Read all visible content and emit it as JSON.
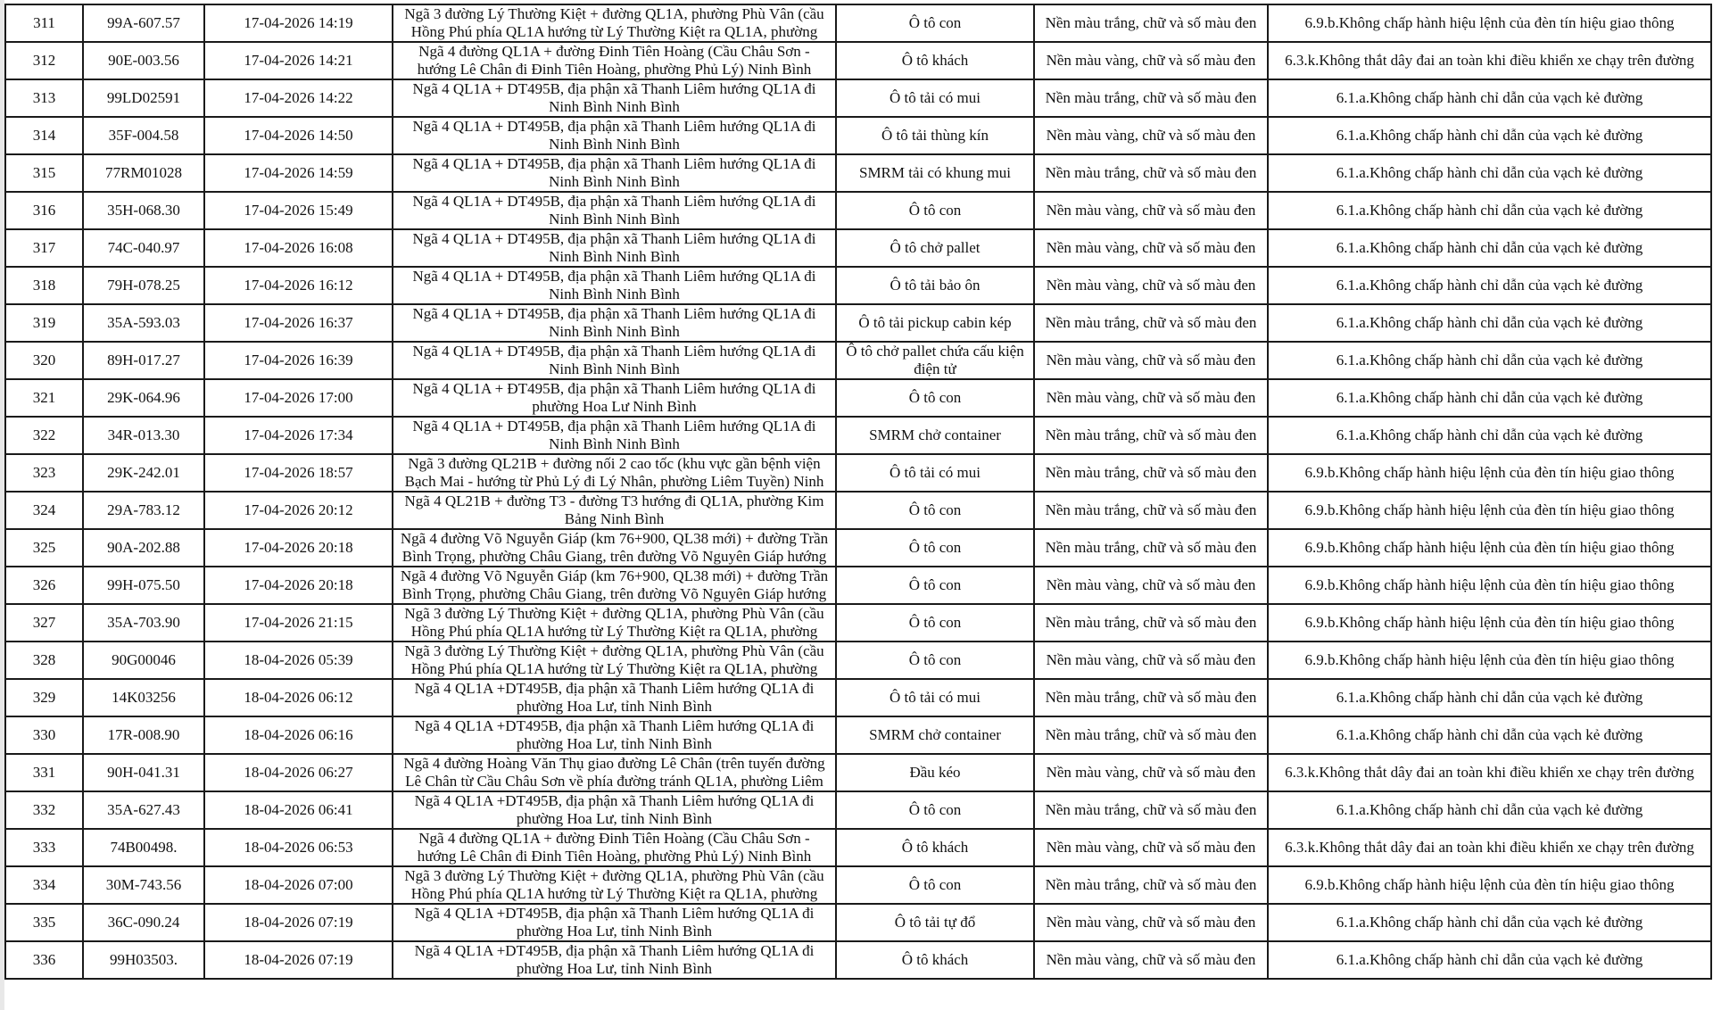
{
  "table": {
    "rows": [
      {
        "stt": "311",
        "plate": "99A-607.57",
        "time": "17-04-2026 14:19",
        "location": "Ngã 3 đường Lý Thường Kiệt + đường QL1A, phường Phù Vân (cầu\nHồng Phú phía QL1A hướng từ Lý Thường Kiệt ra QL1A, phường",
        "vehicle": "Ô tô con",
        "plate_color": "Nền màu trắng, chữ và số màu đen",
        "violation": "6.9.b.Không chấp hành hiệu lệnh của đèn tín hiệu giao thông"
      },
      {
        "stt": "312",
        "plate": "90E-003.56",
        "time": "17-04-2026 14:21",
        "location": "Ngã 4 đường QL1A + đường Đinh Tiên Hoàng (Cầu Châu Sơn -\nhướng Lê Chân đi Đinh Tiên Hoàng, phường Phủ Lý) Ninh Bình",
        "vehicle": "Ô tô khách",
        "plate_color": "Nền màu vàng, chữ và số màu đen",
        "violation": "6.3.k.Không thắt dây đai an toàn khi điều khiển xe chạy trên đường"
      },
      {
        "stt": "313",
        "plate": "99LD02591",
        "time": "17-04-2026 14:22",
        "location": "Ngã 4 QL1A + DT495B, địa phận xã Thanh Liêm hướng QL1A đi\nNinh Bình Ninh Bình",
        "vehicle": "Ô tô tải có mui",
        "plate_color": "Nền màu trắng, chữ và số màu đen",
        "violation": "6.1.a.Không chấp hành chỉ dẫn của vạch kẻ đường"
      },
      {
        "stt": "314",
        "plate": "35F-004.58",
        "time": "17-04-2026 14:50",
        "location": "Ngã 4 QL1A + DT495B, địa phận xã Thanh Liêm hướng QL1A đi\nNinh Bình Ninh Bình",
        "vehicle": "Ô tô tải thùng kín",
        "plate_color": "Nền màu vàng, chữ và số màu đen",
        "violation": "6.1.a.Không chấp hành chỉ dẫn của vạch kẻ đường"
      },
      {
        "stt": "315",
        "plate": "77RM01028",
        "time": "17-04-2026 14:59",
        "location": "Ngã 4 QL1A + DT495B, địa phận xã Thanh Liêm hướng QL1A đi\nNinh Bình Ninh Bình",
        "vehicle": "SMRM tải có khung mui",
        "plate_color": "Nền màu trắng, chữ và số màu đen",
        "violation": "6.1.a.Không chấp hành chỉ dẫn của vạch kẻ đường"
      },
      {
        "stt": "316",
        "plate": "35H-068.30",
        "time": "17-04-2026 15:49",
        "location": "Ngã 4 QL1A + DT495B, địa phận xã Thanh Liêm hướng QL1A đi\nNinh Bình Ninh Bình",
        "vehicle": "Ô tô con",
        "plate_color": "Nền màu vàng, chữ và số màu đen",
        "violation": "6.1.a.Không chấp hành chỉ dẫn của vạch kẻ đường"
      },
      {
        "stt": "317",
        "plate": "74C-040.97",
        "time": "17-04-2026 16:08",
        "location": "Ngã 4 QL1A + DT495B, địa phận xã Thanh Liêm hướng QL1A đi\nNinh Bình Ninh Bình",
        "vehicle": "Ô tô chở pallet",
        "plate_color": "Nền màu vàng, chữ và số màu đen",
        "violation": "6.1.a.Không chấp hành chỉ dẫn của vạch kẻ đường"
      },
      {
        "stt": "318",
        "plate": "79H-078.25",
        "time": "17-04-2026 16:12",
        "location": "Ngã 4 QL1A + DT495B, địa phận xã Thanh Liêm hướng QL1A đi\nNinh Bình Ninh Bình",
        "vehicle": "Ô tô tải bảo ôn",
        "plate_color": "Nền màu vàng, chữ và số màu đen",
        "violation": "6.1.a.Không chấp hành chỉ dẫn của vạch kẻ đường"
      },
      {
        "stt": "319",
        "plate": "35A-593.03",
        "time": "17-04-2026 16:37",
        "location": "Ngã 4 QL1A + DT495B, địa phận xã Thanh Liêm hướng QL1A đi\nNinh Bình Ninh Bình",
        "vehicle": "Ô tô tải pickup cabin kép",
        "plate_color": "Nền màu trắng, chữ và số màu đen",
        "violation": "6.1.a.Không chấp hành chỉ dẫn của vạch kẻ đường"
      },
      {
        "stt": "320",
        "plate": "89H-017.27",
        "time": "17-04-2026 16:39",
        "location": "Ngã 4 QL1A + DT495B, địa phận xã Thanh Liêm hướng QL1A đi\nNinh Bình Ninh Bình",
        "vehicle": "Ô tô chở pallet chứa cấu kiện\nđiện tử",
        "plate_color": "Nền màu vàng, chữ và số màu đen",
        "violation": "6.1.a.Không chấp hành chỉ dẫn của vạch kẻ đường"
      },
      {
        "stt": "321",
        "plate": "29K-064.96",
        "time": "17-04-2026 17:00",
        "location": "Ngã 4 QL1A + ĐT495B, địa phận xã Thanh Liêm hướng QL1A đi\nphường Hoa Lư Ninh Bình",
        "vehicle": "Ô tô con",
        "plate_color": "Nền màu vàng, chữ và số màu đen",
        "violation": "6.1.a.Không chấp hành chỉ dẫn của vạch kẻ đường"
      },
      {
        "stt": "322",
        "plate": "34R-013.30",
        "time": "17-04-2026 17:34",
        "location": "Ngã 4 QL1A + DT495B, địa phận xã Thanh Liêm hướng QL1A đi\nNinh Bình Ninh Bình",
        "vehicle": "SMRM chở container",
        "plate_color": "Nền màu trắng, chữ và số màu đen",
        "violation": "6.1.a.Không chấp hành chỉ dẫn của vạch kẻ đường"
      },
      {
        "stt": "323",
        "plate": "29K-242.01",
        "time": "17-04-2026 18:57",
        "location": "Ngã 3 đường QL21B + đường nối 2 cao tốc (khu vực gần bệnh viện\nBạch Mai - hướng từ Phủ Lý đi Lý Nhân, phường Liêm Tuyền) Ninh",
        "vehicle": "Ô tô tải có mui",
        "plate_color": "Nền màu trắng, chữ và số màu đen",
        "violation": "6.9.b.Không chấp hành hiệu lệnh của đèn tín hiệu giao thông"
      },
      {
        "stt": "324",
        "plate": "29A-783.12",
        "time": "17-04-2026 20:12",
        "location": "Ngã 4 QL21B + đường T3 - đường T3 hướng đi QL1A, phường Kim\nBảng Ninh Bình",
        "vehicle": "Ô tô con",
        "plate_color": "Nền màu trắng, chữ và số màu đen",
        "violation": "6.9.b.Không chấp hành hiệu lệnh của đèn tín hiệu giao thông"
      },
      {
        "stt": "325",
        "plate": "90A-202.88",
        "time": "17-04-2026 20:18",
        "location": "Ngã 4 đường Võ Nguyễn Giáp (km 76+900, QL38 mới) + đường Trần\nBình Trọng, phường Châu Giang, trên đường Võ Nguyên Giáp hướng",
        "vehicle": "Ô tô con",
        "plate_color": "Nền màu trắng, chữ và số màu đen",
        "violation": "6.9.b.Không chấp hành hiệu lệnh của đèn tín hiệu giao thông"
      },
      {
        "stt": "326",
        "plate": "99H-075.50",
        "time": "17-04-2026 20:18",
        "location": "Ngã 4 đường Võ Nguyễn Giáp (km 76+900, QL38 mới) + đường Trần\nBình Trọng, phường Châu Giang, trên đường Võ Nguyên Giáp hướng",
        "vehicle": "Ô tô con",
        "plate_color": "Nền màu vàng, chữ và số màu đen",
        "violation": "6.9.b.Không chấp hành hiệu lệnh của đèn tín hiệu giao thông"
      },
      {
        "stt": "327",
        "plate": "35A-703.90",
        "time": "17-04-2026 21:15",
        "location": "Ngã 3 đường Lý Thường Kiệt + đường QL1A, phường Phù Vân (cầu\nHồng Phú phía QL1A hướng từ Lý Thường Kiệt ra QL1A, phường",
        "vehicle": "Ô tô con",
        "plate_color": "Nền màu trắng, chữ và số màu đen",
        "violation": "6.9.b.Không chấp hành hiệu lệnh của đèn tín hiệu giao thông"
      },
      {
        "stt": "328",
        "plate": "90G00046",
        "time": "18-04-2026 05:39",
        "location": "Ngã 3 đường Lý Thường Kiệt + đường QL1A, phường Phù Vân (cầu\nHồng Phú phía QL1A hướng từ Lý Thường Kiệt ra QL1A, phường",
        "vehicle": "Ô tô con",
        "plate_color": "Nền màu vàng, chữ và số màu đen",
        "violation": "6.9.b.Không chấp hành hiệu lệnh của đèn tín hiệu giao thông"
      },
      {
        "stt": "329",
        "plate": "14K03256",
        "time": "18-04-2026 06:12",
        "location": "Ngã 4 QL1A +DT495B, địa phận xã Thanh Liêm hướng QL1A đi\nphường Hoa Lư, tỉnh Ninh Bình",
        "vehicle": "Ô tô tải có mui",
        "plate_color": "Nền màu trắng, chữ và số màu đen",
        "violation": "6.1.a.Không chấp hành chỉ dẫn của vạch kẻ đường"
      },
      {
        "stt": "330",
        "plate": "17R-008.90",
        "time": "18-04-2026 06:16",
        "location": "Ngã 4 QL1A +DT495B, địa phận xã Thanh Liêm hướng QL1A đi\nphường Hoa Lư, tỉnh Ninh Bình",
        "vehicle": "SMRM chở container",
        "plate_color": "Nền màu trắng, chữ và số màu đen",
        "violation": "6.1.a.Không chấp hành chỉ dẫn của vạch kẻ đường"
      },
      {
        "stt": "331",
        "plate": "90H-041.31",
        "time": "18-04-2026 06:27",
        "location": "Ngã 4 đường Hoàng Văn Thụ giao đường Lê Chân (trên tuyến đường\nLê Chân từ Cầu Châu Sơn về phía đường tránh QL1A, phường Liêm",
        "vehicle": "Đầu kéo",
        "plate_color": "Nền màu vàng, chữ và số màu đen",
        "violation": "6.3.k.Không thắt dây đai an toàn khi điều khiển xe chạy trên đường"
      },
      {
        "stt": "332",
        "plate": "35A-627.43",
        "time": "18-04-2026 06:41",
        "location": "Ngã 4 QL1A +DT495B, địa phận xã Thanh Liêm hướng QL1A đi\nphường Hoa Lư, tỉnh Ninh Bình",
        "vehicle": "Ô tô con",
        "plate_color": "Nền màu trắng, chữ và số màu đen",
        "violation": "6.1.a.Không chấp hành chỉ dẫn của vạch kẻ đường"
      },
      {
        "stt": "333",
        "plate": "74B00498.",
        "time": "18-04-2026 06:53",
        "location": "Ngã 4 đường QL1A + đường Đinh Tiên Hoàng (Cầu Châu Sơn -\nhướng Lê Chân đi Đinh Tiên Hoàng, phường Phủ Lý) Ninh Bình",
        "vehicle": "Ô tô khách",
        "plate_color": "Nền màu vàng, chữ và số màu đen",
        "violation": "6.3.k.Không thắt dây đai an toàn khi điều khiển xe chạy trên đường"
      },
      {
        "stt": "334",
        "plate": "30M-743.56",
        "time": "18-04-2026 07:00",
        "location": "Ngã 3 đường Lý Thường Kiệt + đường QL1A, phường Phù Vân (cầu\nHồng Phú phía QL1A hướng từ Lý Thường Kiệt ra QL1A, phường",
        "vehicle": "Ô tô con",
        "plate_color": "Nền màu trắng, chữ và số màu đen",
        "violation": "6.9.b.Không chấp hành hiệu lệnh của đèn tín hiệu giao thông"
      },
      {
        "stt": "335",
        "plate": "36C-090.24",
        "time": "18-04-2026 07:19",
        "location": "Ngã 4 QL1A +DT495B, địa phận xã Thanh Liêm hướng QL1A đi\nphường Hoa Lư, tỉnh Ninh Bình",
        "vehicle": "Ô tô tải tự đổ",
        "plate_color": "Nền màu vàng, chữ và số màu đen",
        "violation": "6.1.a.Không chấp hành chỉ dẫn của vạch kẻ đường"
      },
      {
        "stt": "336",
        "plate": "99H03503.",
        "time": "18-04-2026 07:19",
        "location": "Ngã 4 QL1A +DT495B, địa phận xã Thanh Liêm hướng QL1A đi\nphường Hoa Lư, tỉnh Ninh Bình",
        "vehicle": "Ô tô khách",
        "plate_color": "Nền màu vàng, chữ và số màu đen",
        "violation": "6.1.a.Không chấp hành chỉ dẫn của vạch kẻ đường"
      }
    ]
  }
}
